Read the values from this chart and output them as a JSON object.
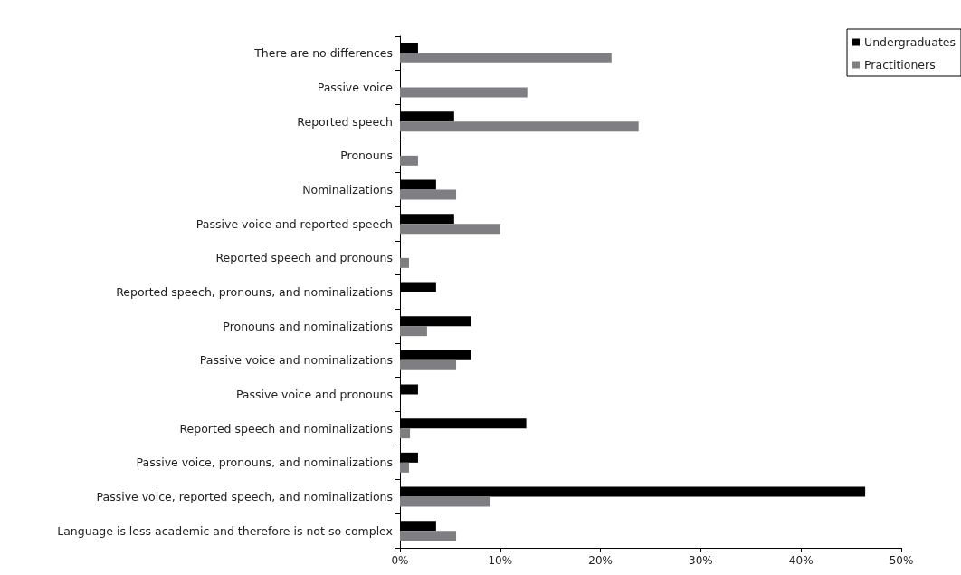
{
  "chart_data": {
    "type": "bar",
    "orientation": "horizontal",
    "categories": [
      "There are no differences",
      "Passive voice",
      "Reported speech",
      "Pronouns",
      "Nominalizations",
      "Passive voice and reported speech",
      "Reported speech and pronouns",
      "Reported speech, pronouns, and nominalizations",
      "Pronouns and nominalizations",
      "Passive voice and nominalizations",
      "Passive voice and pronouns",
      "Reported speech and nominalizations",
      "Passive voice, pronouns, and nominalizations",
      "Passive voice, reported speech, and nominalizations",
      "Language is less academic and therefore is not so complex"
    ],
    "series": [
      {
        "name": "Undergraduates",
        "color": "#000000",
        "values": [
          1.8,
          null,
          5.4,
          null,
          3.6,
          5.4,
          null,
          3.6,
          7.1,
          7.1,
          1.8,
          12.6,
          1.8,
          46.4,
          3.6
        ]
      },
      {
        "name": "Practitioners",
        "color": "#7f7f83",
        "values": [
          21.1,
          12.7,
          23.8,
          1.8,
          5.6,
          10.0,
          0.9,
          null,
          2.7,
          5.6,
          null,
          1.0,
          0.9,
          9.0,
          5.6
        ]
      }
    ],
    "xlim": [
      0,
      50
    ],
    "xticks": [
      {
        "value": 0,
        "label": "0%"
      },
      {
        "value": 10,
        "label": "10%"
      },
      {
        "value": 20,
        "label": "20%"
      },
      {
        "value": 30,
        "label": "30%"
      },
      {
        "value": 40,
        "label": "40%"
      },
      {
        "value": 50,
        "label": "50%"
      }
    ],
    "grid": false,
    "legend": "top right"
  }
}
